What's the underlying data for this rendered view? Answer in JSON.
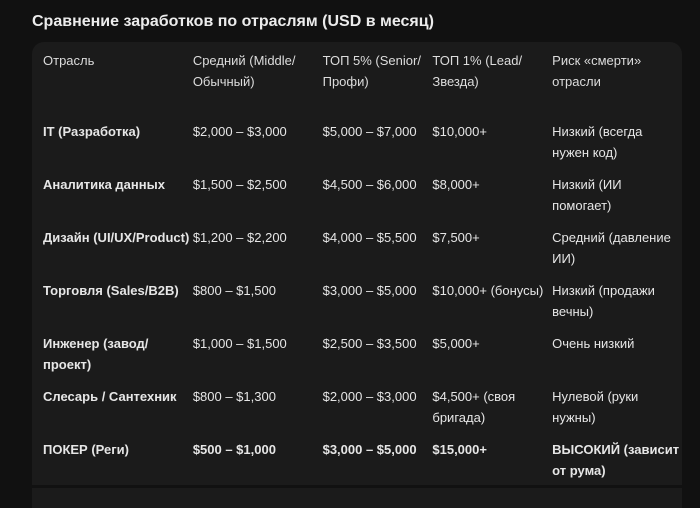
{
  "title": "Сравнение заработков по отраслям (USD в месяц)",
  "table": {
    "headers": [
      "Отрасль",
      "Средний (Middle/ Обычный)",
      "ТОП 5% (Senior/ Профи)",
      "ТОП 1% (Lead/ Звезда)",
      "Риск «смерти» отрасли"
    ],
    "rows": [
      [
        "IT (Разработка)",
        "$2,000 – $3,000",
        "$5,000 – $7,000",
        "$10,000+",
        "Низкий (всегда нужен код)"
      ],
      [
        "Аналитика данных",
        "$1,500 – $2,500",
        "$4,500 – $6,000",
        "$8,000+",
        "Низкий (ИИ помогает)"
      ],
      [
        "Дизайн (UI/UX/Product)",
        "$1,200 – $2,200",
        "$4,000 – $5,500",
        "$7,500+",
        "Средний (давление ИИ)"
      ],
      [
        "Торговля (Sales/B2B)",
        "$800 – $1,500",
        "$3,000 – $5,000",
        "$10,000+ (бонусы)",
        "Низкий (продажи вечны)"
      ],
      [
        "Инженер (завод/ проект)",
        "$1,000 – $1,500",
        "$2,500 – $3,500",
        "$5,000+",
        "Очень низкий"
      ],
      [
        "Слесарь / Сантехник",
        "$800 – $1,300",
        "$2,000 – $3,000",
        "$4,500+ (своя бригада)",
        "Нулевой (руки нужны)"
      ],
      [
        "ПОКЕР (Реги)",
        "$500 – $1,000",
        "$3,000 – $5,000",
        "$15,000+",
        "ВЫСОКИЙ (зависит от рума)"
      ]
    ]
  }
}
